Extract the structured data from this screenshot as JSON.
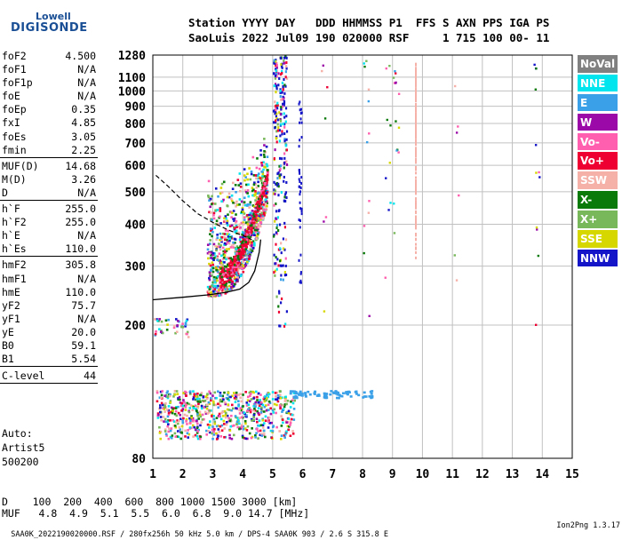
{
  "logo": {
    "line1": "Lowell",
    "line2": "DIGISONDE"
  },
  "header": {
    "row1": "Station YYYY DAY   DDD HHMMSS P1  FFS S AXN PPS IGA PS",
    "row2": "SaoLuis 2022 Jul09 190 020000 RSF     1 715 100 00- 11"
  },
  "params_group1": [
    {
      "name": "foF2",
      "value": "4.500"
    },
    {
      "name": "foF1",
      "value": "N/A"
    },
    {
      "name": "foF1p",
      "value": "N/A"
    },
    {
      "name": "foE",
      "value": "N/A"
    },
    {
      "name": "foEp",
      "value": "0.35"
    },
    {
      "name": "fxI",
      "value": "4.85"
    },
    {
      "name": "foEs",
      "value": "3.05"
    },
    {
      "name": "fmin",
      "value": "2.25"
    }
  ],
  "params_group2": [
    {
      "name": "MUF(D)",
      "value": "14.68"
    },
    {
      "name": "M(D)",
      "value": "3.26"
    },
    {
      "name": "D",
      "value": "N/A"
    }
  ],
  "params_group3": [
    {
      "name": "h`F",
      "value": "255.0"
    },
    {
      "name": "h`F2",
      "value": "255.0"
    },
    {
      "name": "h`E",
      "value": "N/A"
    },
    {
      "name": "h`Es",
      "value": "110.0"
    }
  ],
  "params_group4": [
    {
      "name": "hmF2",
      "value": "305.8"
    },
    {
      "name": "hmF1",
      "value": "N/A"
    },
    {
      "name": "hmE",
      "value": "110.0"
    },
    {
      "name": "yF2",
      "value": "75.7"
    },
    {
      "name": "yF1",
      "value": "N/A"
    },
    {
      "name": "yE",
      "value": "20.0"
    },
    {
      "name": "B0",
      "value": "59.1"
    },
    {
      "name": "B1",
      "value": "5.54"
    }
  ],
  "clevel": {
    "name": "C-level",
    "value": "44"
  },
  "auto": {
    "line1": "Auto:",
    "line2": "Artist5",
    "line3": "500200"
  },
  "legend": [
    {
      "label": "NoVal",
      "color": "#808080"
    },
    {
      "label": "NNE",
      "color": "#00e5ee"
    },
    {
      "label": "E",
      "color": "#3aa0e8"
    },
    {
      "label": "W",
      "color": "#9b0aa8"
    },
    {
      "label": "Vo-",
      "color": "#ff5fae"
    },
    {
      "label": "Vo+",
      "color": "#ee0033"
    },
    {
      "label": "SSW",
      "color": "#f5b0a8"
    },
    {
      "label": "X-",
      "color": "#0a7a0a"
    },
    {
      "label": "X+",
      "color": "#78b85a"
    },
    {
      "label": "SSE",
      "color": "#d7d700"
    },
    {
      "label": "NNW",
      "color": "#1414c8"
    }
  ],
  "muf_table": {
    "row1": "D    100  200  400  600  800 1000 1500 3000 [km]",
    "row2": "MUF   4.8  4.9  5.1  5.5  6.0  6.8  9.0 14.7 [MHz]"
  },
  "footer": {
    "left": "SAA0K_2022190020000.RSF / 280fx256h 50 kHz 5.0 km / DPS-4 SAA0K 903 / 2.6 S 315.8 E",
    "right": "Ion2Png 1.3.17"
  },
  "chart_data": {
    "type": "scatter",
    "title": "",
    "xlabel": "",
    "ylabel": "",
    "xlim": [
      1,
      15
    ],
    "ylim": [
      80,
      1280
    ],
    "y_scale": "log",
    "x_ticks": [
      1,
      2,
      3,
      4,
      5,
      6,
      7,
      8,
      9,
      10,
      11,
      12,
      13,
      14,
      15
    ],
    "y_ticks": [
      80,
      200,
      300,
      400,
      500,
      600,
      700,
      800,
      900,
      1000,
      1100,
      1280
    ],
    "grid": true,
    "traces": [
      {
        "name": "F2 trace",
        "points": [
          [
            2.8,
            246
          ],
          [
            3.1,
            250
          ],
          [
            3.4,
            258
          ],
          [
            3.8,
            270
          ],
          [
            4.0,
            285
          ],
          [
            4.2,
            310
          ],
          [
            4.4,
            350
          ],
          [
            4.5,
            400
          ],
          [
            4.55,
            470
          ],
          [
            4.6,
            520
          ]
        ]
      },
      {
        "name": "E/Es trace",
        "points": [
          [
            1.1,
            110
          ],
          [
            2.0,
            112
          ],
          [
            3.0,
            115
          ],
          [
            4.0,
            118
          ],
          [
            5.0,
            120
          ],
          [
            6.0,
            122
          ],
          [
            7.0,
            123
          ],
          [
            8.2,
            125
          ]
        ]
      },
      {
        "name": "vertical echo column",
        "points": [
          [
            5.05,
            300
          ],
          [
            5.1,
            500
          ],
          [
            5.15,
            700
          ],
          [
            5.2,
            900
          ],
          [
            5.25,
            1100
          ],
          [
            5.3,
            1280
          ]
        ]
      }
    ],
    "profile_solid": [
      [
        1.0,
        238
      ],
      [
        2.0,
        242
      ],
      [
        2.8,
        246
      ],
      [
        3.4,
        250
      ],
      [
        3.9,
        256
      ],
      [
        4.2,
        268
      ],
      [
        4.4,
        290
      ],
      [
        4.55,
        330
      ],
      [
        4.6,
        360
      ]
    ],
    "profile_dashed": [
      [
        1.1,
        560
      ],
      [
        1.5,
        520
      ],
      [
        2.0,
        470
      ],
      [
        2.5,
        430
      ],
      [
        3.0,
        405
      ],
      [
        3.5,
        385
      ],
      [
        4.0,
        370
      ],
      [
        4.3,
        360
      ]
    ]
  }
}
